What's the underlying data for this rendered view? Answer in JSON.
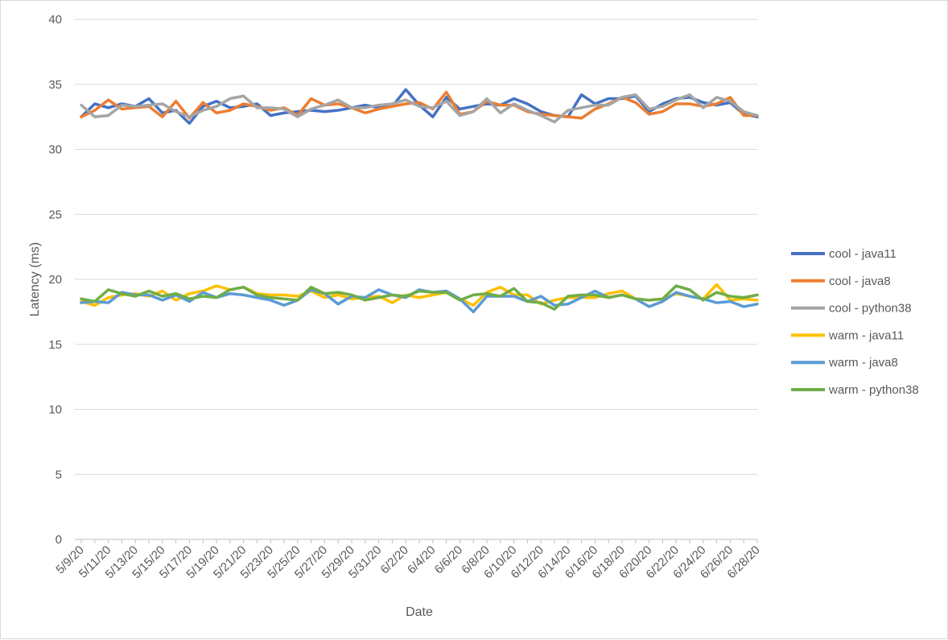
{
  "chart_data": {
    "type": "line",
    "title": "",
    "xlabel": "Date",
    "ylabel": "Latency (ms)",
    "ylim": [
      0,
      40
    ],
    "yticks": [
      0,
      5,
      10,
      15,
      20,
      25,
      30,
      35,
      40
    ],
    "grid": "horizontal",
    "legend_position": "right",
    "x": [
      "5/9/20",
      "5/10/20",
      "5/11/20",
      "5/12/20",
      "5/13/20",
      "5/14/20",
      "5/15/20",
      "5/16/20",
      "5/17/20",
      "5/18/20",
      "5/19/20",
      "5/20/20",
      "5/21/20",
      "5/22/20",
      "5/23/20",
      "5/24/20",
      "5/25/20",
      "5/26/20",
      "5/27/20",
      "5/28/20",
      "5/29/20",
      "5/30/20",
      "5/31/20",
      "6/1/20",
      "6/2/20",
      "6/3/20",
      "6/4/20",
      "6/5/20",
      "6/6/20",
      "6/7/20",
      "6/8/20",
      "6/9/20",
      "6/10/20",
      "6/11/20",
      "6/12/20",
      "6/13/20",
      "6/14/20",
      "6/15/20",
      "6/16/20",
      "6/17/20",
      "6/18/20",
      "6/19/20",
      "6/20/20",
      "6/21/20",
      "6/22/20",
      "6/23/20",
      "6/24/20",
      "6/25/20",
      "6/26/20",
      "6/27/20",
      "6/28/20"
    ],
    "x_tick_labels": [
      "5/9/20",
      "5/11/20",
      "5/13/20",
      "5/15/20",
      "5/17/20",
      "5/19/20",
      "5/21/20",
      "5/23/20",
      "5/25/20",
      "5/27/20",
      "5/29/20",
      "5/31/20",
      "6/2/20",
      "6/4/20",
      "6/6/20",
      "6/8/20",
      "6/10/20",
      "6/12/20",
      "6/14/20",
      "6/16/20",
      "6/18/20",
      "6/20/20",
      "6/22/20",
      "6/24/20",
      "6/26/20",
      "6/28/20"
    ],
    "series": [
      {
        "name": "cool - java11",
        "color": "#4472C4",
        "values": [
          32.5,
          33.5,
          33.2,
          33.5,
          33.3,
          33.9,
          32.8,
          33.0,
          32.0,
          33.3,
          33.7,
          33.2,
          33.3,
          33.5,
          32.6,
          32.8,
          32.9,
          33.0,
          32.9,
          33.0,
          33.2,
          33.4,
          33.2,
          33.3,
          34.6,
          33.4,
          32.5,
          34.0,
          33.1,
          33.3,
          33.5,
          33.4,
          33.9,
          33.5,
          32.9,
          32.6,
          32.5,
          34.2,
          33.5,
          33.9,
          33.9,
          34.1,
          32.9,
          33.5,
          33.9,
          34.0,
          33.6,
          33.4,
          33.6,
          32.7,
          32.5
        ]
      },
      {
        "name": "cool - java8",
        "color": "#ED7D31",
        "values": [
          32.5,
          33.0,
          33.8,
          33.1,
          33.2,
          33.3,
          32.5,
          33.7,
          32.4,
          33.6,
          32.8,
          33.0,
          33.5,
          33.3,
          33.0,
          33.2,
          32.6,
          33.9,
          33.4,
          33.5,
          33.2,
          32.8,
          33.1,
          33.3,
          33.5,
          33.6,
          33.1,
          34.4,
          32.7,
          32.9,
          33.7,
          33.4,
          33.4,
          32.9,
          32.7,
          32.6,
          32.5,
          32.4,
          33.1,
          33.5,
          34.0,
          33.6,
          32.7,
          32.9,
          33.5,
          33.5,
          33.3,
          33.5,
          34.0,
          32.6,
          32.6
        ]
      },
      {
        "name": "cool - python38",
        "color": "#A5A5A5",
        "values": [
          33.4,
          32.5,
          32.6,
          33.4,
          33.3,
          33.4,
          33.5,
          32.9,
          32.5,
          33.0,
          33.3,
          33.9,
          34.1,
          33.2,
          33.2,
          33.1,
          32.5,
          33.1,
          33.4,
          33.8,
          33.2,
          33.2,
          33.4,
          33.5,
          33.8,
          33.3,
          33.2,
          33.7,
          32.6,
          32.9,
          33.9,
          32.8,
          33.5,
          33.0,
          32.6,
          32.1,
          33.0,
          33.2,
          33.4,
          33.4,
          34.0,
          34.2,
          33.1,
          33.3,
          33.8,
          34.2,
          33.2,
          34.0,
          33.7,
          32.9,
          32.6
        ]
      },
      {
        "name": "warm - java11",
        "color": "#FFC000",
        "values": [
          18.3,
          18.0,
          18.6,
          18.8,
          18.9,
          18.7,
          19.1,
          18.4,
          18.9,
          19.1,
          19.5,
          19.2,
          19.4,
          18.9,
          18.8,
          18.8,
          18.7,
          19.1,
          18.6,
          18.8,
          18.5,
          18.6,
          18.7,
          18.2,
          18.8,
          18.6,
          18.8,
          19.0,
          18.5,
          18.0,
          19.0,
          19.4,
          18.8,
          18.8,
          18.1,
          18.4,
          18.6,
          18.6,
          18.6,
          18.9,
          19.1,
          18.5,
          18.4,
          18.5,
          18.9,
          18.7,
          18.5,
          19.6,
          18.4,
          18.5,
          18.4
        ]
      },
      {
        "name": "warm - java8",
        "color": "#5B9BD5",
        "values": [
          18.2,
          18.3,
          18.2,
          19.0,
          18.8,
          18.8,
          18.4,
          18.8,
          18.3,
          19.0,
          18.6,
          18.9,
          18.8,
          18.6,
          18.4,
          18.0,
          18.4,
          19.2,
          18.9,
          18.1,
          18.7,
          18.6,
          19.2,
          18.8,
          18.6,
          19.2,
          19.0,
          19.1,
          18.5,
          17.5,
          18.7,
          18.7,
          18.7,
          18.3,
          18.7,
          18.0,
          18.1,
          18.6,
          19.1,
          18.6,
          18.8,
          18.5,
          17.9,
          18.3,
          19.0,
          18.7,
          18.5,
          18.2,
          18.3,
          17.9,
          18.1
        ]
      },
      {
        "name": "warm - python38",
        "color": "#70AD47",
        "values": [
          18.5,
          18.3,
          19.2,
          18.9,
          18.7,
          19.1,
          18.7,
          18.9,
          18.5,
          18.7,
          18.6,
          19.2,
          19.4,
          18.8,
          18.6,
          18.5,
          18.4,
          19.4,
          18.9,
          19.0,
          18.8,
          18.4,
          18.6,
          18.8,
          18.7,
          19.1,
          19.0,
          19.0,
          18.4,
          18.8,
          18.9,
          18.7,
          19.3,
          18.3,
          18.2,
          17.7,
          18.7,
          18.8,
          18.8,
          18.6,
          18.8,
          18.5,
          18.4,
          18.5,
          19.5,
          19.2,
          18.4,
          19.0,
          18.7,
          18.6,
          18.8
        ]
      }
    ]
  }
}
